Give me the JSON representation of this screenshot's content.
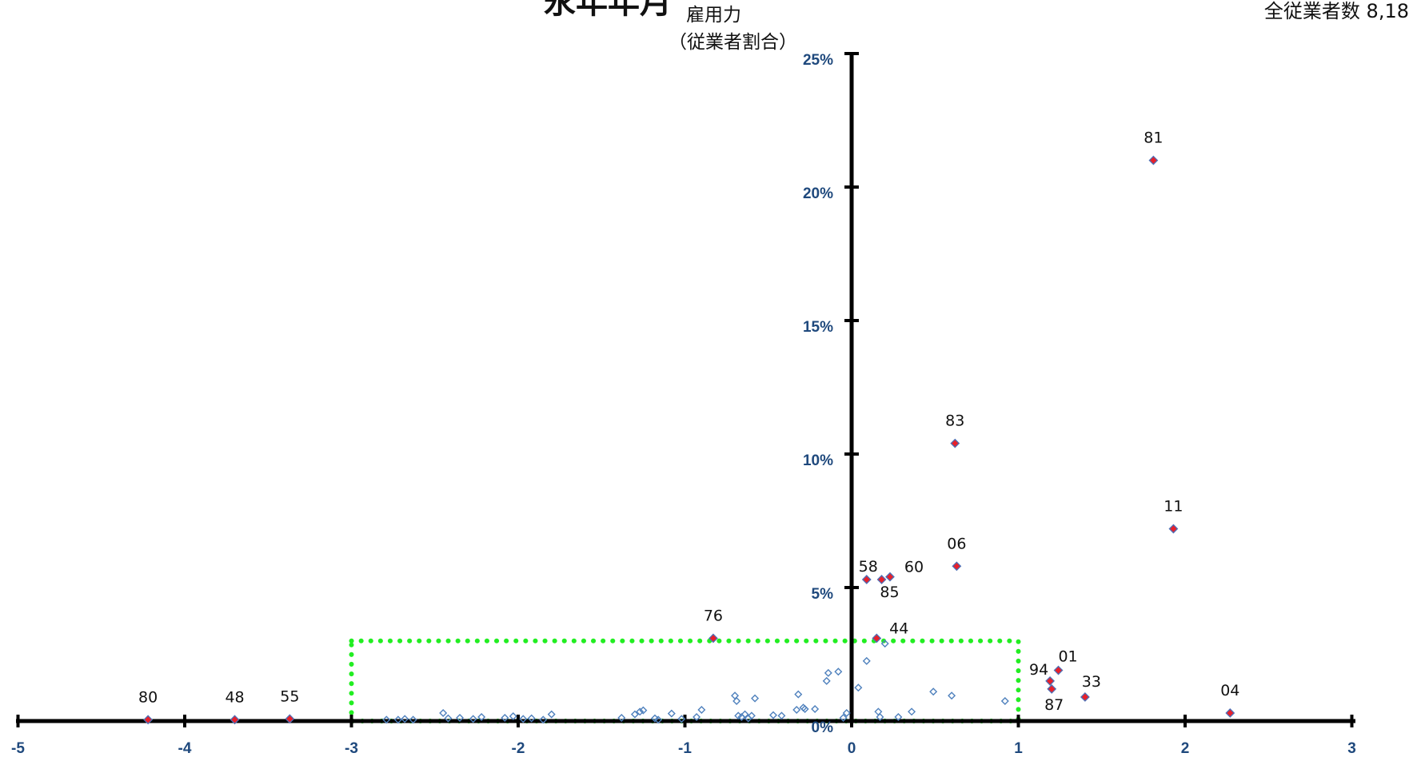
{
  "title_fragment": "永年年月",
  "top_right_text": "全従業者数 8,18",
  "y_axis_label_line1": "雇用力",
  "y_axis_label_line2": "（従業者割合）",
  "colors": {
    "axis": "#000000",
    "tick_label": "#1f497d",
    "highlight_fill": "#e8202a",
    "highlight_stroke": "#4f6fb5",
    "small_point": "#4f81bd",
    "dotted_box": "#22ee22"
  },
  "chart_data": {
    "type": "scatter",
    "xlim": [
      -5,
      3
    ],
    "ylim": [
      0,
      25
    ],
    "x_ticks": [
      -5,
      -4,
      -3,
      -2,
      -1,
      0,
      1,
      2,
      3
    ],
    "x_tick_labels": [
      "-5",
      "-4",
      "-3",
      "-2",
      "-1",
      "0",
      "1",
      "2",
      "3"
    ],
    "y_ticks": [
      0,
      5,
      10,
      15,
      20,
      25
    ],
    "y_tick_labels": [
      "0%",
      "5%",
      "10%",
      "15%",
      "20%",
      "25%"
    ],
    "grid": false,
    "highlight_box": {
      "x": [
        -3,
        1
      ],
      "y": [
        0,
        3
      ]
    },
    "labeled_points": [
      {
        "label": "81",
        "x": 1.81,
        "y": 21.0
      },
      {
        "label": "83",
        "x": 0.62,
        "y": 10.4
      },
      {
        "label": "11",
        "x": 1.93,
        "y": 7.2
      },
      {
        "label": "06",
        "x": 0.63,
        "y": 5.8
      },
      {
        "label": "58",
        "x": 0.09,
        "y": 5.3
      },
      {
        "label": "85",
        "x": 0.18,
        "y": 5.3
      },
      {
        "label": "60",
        "x": 0.23,
        "y": 5.4
      },
      {
        "label": "76",
        "x": -0.83,
        "y": 3.1
      },
      {
        "label": "44",
        "x": 0.15,
        "y": 3.1
      },
      {
        "label": "01",
        "x": 1.24,
        "y": 1.9
      },
      {
        "label": "94",
        "x": 1.19,
        "y": 1.5
      },
      {
        "label": "87",
        "x": 1.2,
        "y": 1.2
      },
      {
        "label": "33",
        "x": 1.4,
        "y": 0.9
      },
      {
        "label": "04",
        "x": 2.27,
        "y": 0.3
      },
      {
        "label": "80",
        "x": -4.22,
        "y": 0.05
      },
      {
        "label": "48",
        "x": -3.7,
        "y": 0.05
      },
      {
        "label": "55",
        "x": -3.37,
        "y": 0.08
      }
    ],
    "minor_points": [
      [
        -2.79,
        0.05
      ],
      [
        -2.72,
        0.05
      ],
      [
        -2.68,
        0.08
      ],
      [
        -2.63,
        0.05
      ],
      [
        -2.45,
        0.3
      ],
      [
        -2.42,
        0.1
      ],
      [
        -2.35,
        0.12
      ],
      [
        -2.27,
        0.08
      ],
      [
        -2.22,
        0.15
      ],
      [
        -2.08,
        0.12
      ],
      [
        -2.03,
        0.18
      ],
      [
        -1.97,
        0.08
      ],
      [
        -1.92,
        0.1
      ],
      [
        -1.85,
        0.05
      ],
      [
        -1.8,
        0.25
      ],
      [
        -1.38,
        0.12
      ],
      [
        -1.3,
        0.25
      ],
      [
        -1.27,
        0.35
      ],
      [
        -1.25,
        0.4
      ],
      [
        -1.18,
        0.1
      ],
      [
        -1.16,
        0.05
      ],
      [
        -1.08,
        0.28
      ],
      [
        -1.02,
        0.08
      ],
      [
        -0.93,
        0.15
      ],
      [
        -0.9,
        0.42
      ],
      [
        -0.7,
        0.95
      ],
      [
        -0.69,
        0.75
      ],
      [
        -0.68,
        0.2
      ],
      [
        -0.66,
        0.15
      ],
      [
        -0.64,
        0.25
      ],
      [
        -0.62,
        0.1
      ],
      [
        -0.6,
        0.2
      ],
      [
        -0.58,
        0.85
      ],
      [
        -0.47,
        0.22
      ],
      [
        -0.42,
        0.2
      ],
      [
        -0.33,
        0.42
      ],
      [
        -0.32,
        1.0
      ],
      [
        -0.29,
        0.5
      ],
      [
        -0.28,
        0.45
      ],
      [
        -0.22,
        0.45
      ],
      [
        -0.15,
        1.5
      ],
      [
        -0.14,
        1.8
      ],
      [
        -0.08,
        1.85
      ],
      [
        -0.05,
        0.12
      ],
      [
        -0.03,
        0.3
      ],
      [
        0.04,
        1.25
      ],
      [
        0.09,
        2.25
      ],
      [
        0.16,
        0.35
      ],
      [
        0.17,
        0.15
      ],
      [
        0.2,
        2.9
      ],
      [
        0.28,
        0.15
      ],
      [
        0.36,
        0.35
      ],
      [
        0.49,
        1.1
      ],
      [
        0.6,
        0.95
      ],
      [
        0.92,
        0.75
      ]
    ]
  }
}
